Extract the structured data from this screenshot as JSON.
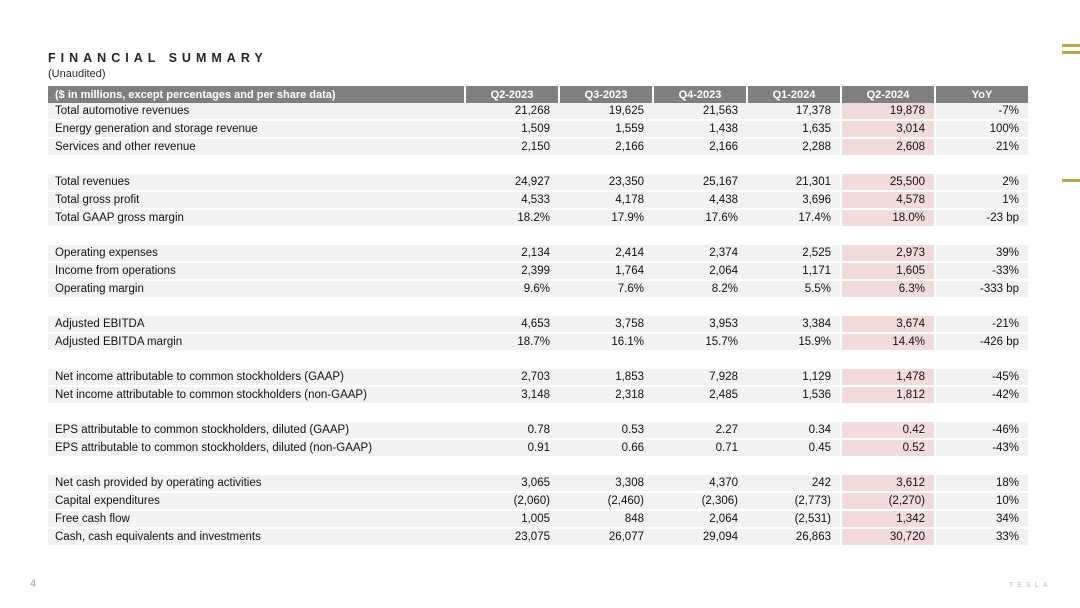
{
  "slide": {
    "title": "FINANCIAL SUMMARY",
    "subtitle": "(Unaudited)",
    "page_number": "4",
    "brand": "TESLA"
  },
  "table": {
    "header": {
      "label": "($ in millions, except percentages and per share data)",
      "columns": [
        "Q2-2023",
        "Q3-2023",
        "Q4-2023",
        "Q1-2024",
        "Q2-2024",
        "YoY"
      ],
      "highlight_column": "Q2-2024"
    },
    "sections": [
      {
        "rows": [
          {
            "label": "Total automotive revenues",
            "values": [
              "21,268",
              "19,625",
              "21,563",
              "17,378",
              "19,878",
              "-7%"
            ]
          },
          {
            "label": "Energy generation and storage revenue",
            "values": [
              "1,509",
              "1,559",
              "1,438",
              "1,635",
              "3,014",
              "100%"
            ]
          },
          {
            "label": "Services and other revenue",
            "values": [
              "2,150",
              "2,166",
              "2,166",
              "2,288",
              "2,608",
              "21%"
            ]
          }
        ]
      },
      {
        "rows": [
          {
            "label": "Total revenues",
            "values": [
              "24,927",
              "23,350",
              "25,167",
              "21,301",
              "25,500",
              "2%"
            ]
          },
          {
            "label": "Total gross profit",
            "values": [
              "4,533",
              "4,178",
              "4,438",
              "3,696",
              "4,578",
              "1%"
            ]
          },
          {
            "label": "Total GAAP gross margin",
            "values": [
              "18.2%",
              "17.9%",
              "17.6%",
              "17.4%",
              "18.0%",
              "-23 bp"
            ]
          }
        ]
      },
      {
        "rows": [
          {
            "label": "Operating expenses",
            "values": [
              "2,134",
              "2,414",
              "2,374",
              "2,525",
              "2,973",
              "39%"
            ]
          },
          {
            "label": "Income from operations",
            "values": [
              "2,399",
              "1,764",
              "2,064",
              "1,171",
              "1,605",
              "-33%"
            ]
          },
          {
            "label": "Operating margin",
            "values": [
              "9.6%",
              "7.6%",
              "8.2%",
              "5.5%",
              "6.3%",
              "-333 bp"
            ]
          }
        ]
      },
      {
        "rows": [
          {
            "label": "Adjusted EBITDA",
            "values": [
              "4,653",
              "3,758",
              "3,953",
              "3,384",
              "3,674",
              "-21%"
            ]
          },
          {
            "label": "Adjusted EBITDA margin",
            "values": [
              "18.7%",
              "16.1%",
              "15.7%",
              "15.9%",
              "14.4%",
              "-426 bp"
            ]
          }
        ]
      },
      {
        "rows": [
          {
            "label": "Net income attributable to common stockholders (GAAP)",
            "values": [
              "2,703",
              "1,853",
              "7,928",
              "1,129",
              "1,478",
              "-45%"
            ]
          },
          {
            "label": "Net income attributable to common stockholders (non-GAAP)",
            "values": [
              "3,148",
              "2,318",
              "2,485",
              "1,536",
              "1,812",
              "-42%"
            ]
          }
        ]
      },
      {
        "rows": [
          {
            "label": "EPS attributable to common stockholders, diluted (GAAP)",
            "values": [
              "0.78",
              "0.53",
              "2.27",
              "0.34",
              "0.42",
              "-46%"
            ]
          },
          {
            "label": "EPS attributable to common stockholders, diluted (non-GAAP)",
            "values": [
              "0.91",
              "0.66",
              "0.71",
              "0.45",
              "0.52",
              "-43%"
            ]
          }
        ]
      },
      {
        "rows": [
          {
            "label": "Net cash provided by operating activities",
            "values": [
              "3,065",
              "3,308",
              "4,370",
              "242",
              "3,612",
              "18%"
            ]
          },
          {
            "label": "Capital expenditures",
            "values": [
              "(2,060)",
              "(2,460)",
              "(2,306)",
              "(2,773)",
              "(2,270)",
              "10%"
            ]
          },
          {
            "label": "Free cash flow",
            "values": [
              "1,005",
              "848",
              "2,064",
              "(2,531)",
              "1,342",
              "34%"
            ]
          },
          {
            "label": "Cash, cash equivalents and investments",
            "values": [
              "23,075",
              "26,077",
              "29,094",
              "26,863",
              "30,720",
              "33%"
            ]
          }
        ]
      }
    ]
  },
  "colors": {
    "header_bg": "#808080",
    "header_text": "#ffffff",
    "row_stripe": "#f2f2f2",
    "highlight": "#f2dcdb",
    "accent_dash": "#b8a84f",
    "brand_text": "#d0d0d0",
    "page_number": "#a6a6a6"
  }
}
